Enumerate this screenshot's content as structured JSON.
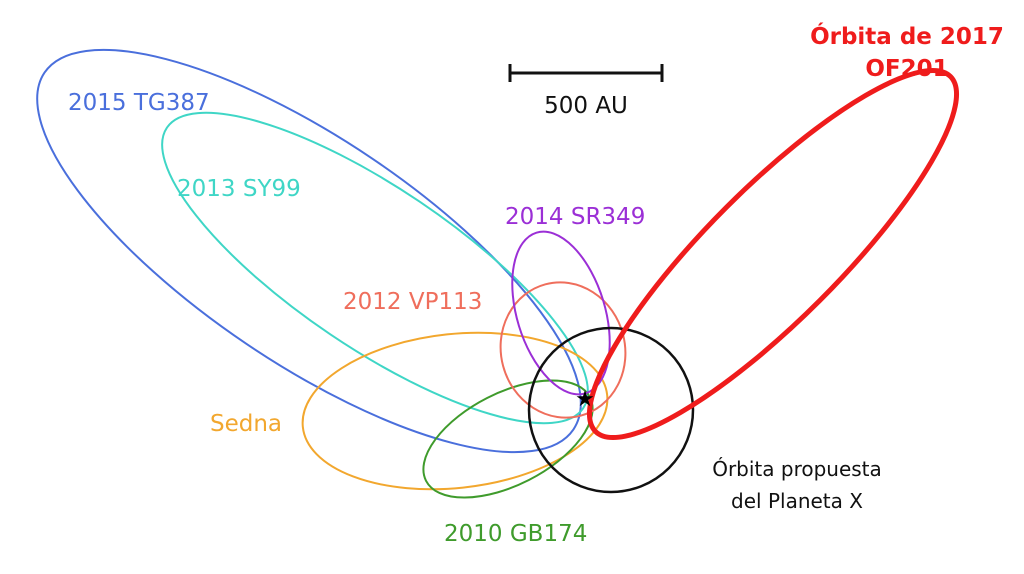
{
  "scale_bar": {
    "label": "500 AU"
  },
  "orbits": [
    {
      "name": "2015 TG387",
      "color": "#4a6fdc"
    },
    {
      "name": "2013 SY99",
      "color": "#3fd6c6"
    },
    {
      "name": "2014 SR349",
      "color": "#9b2fd6"
    },
    {
      "name": "2012 VP113",
      "color": "#ef6e5c"
    },
    {
      "name": "Sedna",
      "color": "#f2a72e"
    },
    {
      "name": "2010 GB174",
      "color": "#3f9b2c"
    }
  ],
  "highlight_orbit": {
    "line1": "Órbita de 2017",
    "line2": "OF201",
    "color": "#ef1c1c"
  },
  "planet_x": {
    "line1": "Órbita propuesta",
    "line2": "del Planeta X",
    "color": "#111111"
  },
  "sun": {
    "icon": "star-icon"
  }
}
